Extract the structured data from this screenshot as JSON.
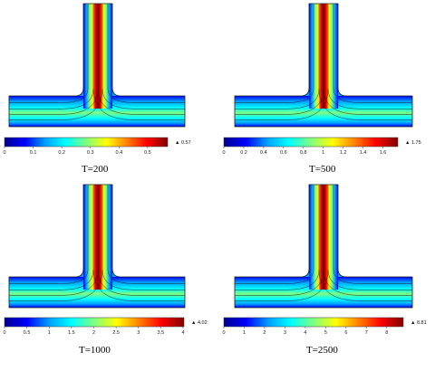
{
  "panels": [
    {
      "label": "T=200",
      "max_label": "0.57",
      "cmap_max": 0.57,
      "ticks": [
        "0",
        "0.1",
        "0.2",
        "0.3",
        "0.4",
        "0.5"
      ],
      "tick_values": [
        0,
        0.1,
        0.2,
        0.3,
        0.4,
        0.5
      ]
    },
    {
      "label": "T=500",
      "max_label": "1.75",
      "cmap_max": 1.75,
      "ticks": [
        "0",
        "0.2",
        "0.4",
        "0.6",
        "0.8",
        "1",
        "1.2",
        "1.4",
        "1.6"
      ],
      "tick_values": [
        0,
        0.2,
        0.4,
        0.6,
        0.8,
        1,
        1.2,
        1.4,
        1.6
      ]
    },
    {
      "label": "T=1000",
      "max_label": "4.02",
      "cmap_max": 4.02,
      "ticks": [
        "0",
        "0.5",
        "1",
        "1.5",
        "2",
        "2.5",
        "3",
        "3.5",
        "4"
      ],
      "tick_values": [
        0,
        0.5,
        1,
        1.5,
        2,
        2.5,
        3,
        3.5,
        4
      ]
    },
    {
      "label": "T=2500",
      "max_label": "8.81",
      "cmap_max": 8.81,
      "ticks": [
        "0",
        "1",
        "2",
        "3",
        "4",
        "5",
        "6",
        "7",
        "8"
      ],
      "tick_values": [
        0,
        1,
        2,
        3,
        4,
        5,
        6,
        7,
        8
      ]
    }
  ],
  "colors": {
    "jet": [
      "#00008f",
      "#0000ff",
      "#00a0ff",
      "#00ffff",
      "#80ff80",
      "#ffff00",
      "#ff8000",
      "#ff0000",
      "#800000"
    ],
    "outline": "#1a1a1a",
    "streamline": "#111111"
  }
}
